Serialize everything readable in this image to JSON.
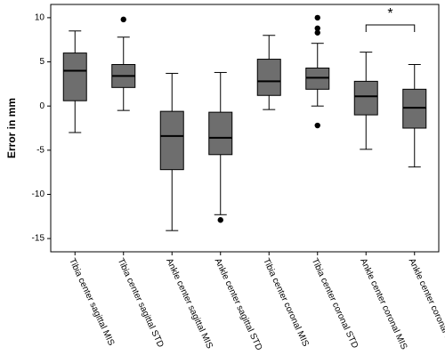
{
  "chart_data": {
    "type": "box",
    "ylabel": "Error in mm",
    "categories": [
      "Tibia center sagittal MIS",
      "Tibia center sagittal STD",
      "Ankle center sagittal MIS",
      "Ankle center sagittal STD",
      "Tibia center coronal MIS",
      "Tibia center coronal STD",
      "Ankle center coronal MIS",
      "Ankle center coronal STD"
    ],
    "boxes": [
      {
        "whislo": -3.0,
        "q1": 0.6,
        "med": 4.0,
        "q3": 6.0,
        "whishi": 8.5,
        "fliers": []
      },
      {
        "whislo": -0.5,
        "q1": 2.1,
        "med": 3.4,
        "q3": 4.7,
        "whishi": 7.8,
        "fliers": [
          9.8
        ]
      },
      {
        "whislo": -14.1,
        "q1": -7.2,
        "med": -3.4,
        "q3": -0.6,
        "whishi": 3.7,
        "fliers": []
      },
      {
        "whislo": -12.3,
        "q1": -5.5,
        "med": -3.6,
        "q3": -0.7,
        "whishi": 3.8,
        "fliers": [
          -12.9
        ]
      },
      {
        "whislo": -0.4,
        "q1": 1.2,
        "med": 2.8,
        "q3": 5.3,
        "whishi": 8.0,
        "fliers": []
      },
      {
        "whislo": 0.0,
        "q1": 1.9,
        "med": 3.2,
        "q3": 4.3,
        "whishi": 7.1,
        "fliers": [
          10.0,
          8.8,
          8.3,
          -2.2
        ]
      },
      {
        "whislo": -4.9,
        "q1": -1.0,
        "med": 1.1,
        "q3": 2.8,
        "whishi": 6.1,
        "fliers": []
      },
      {
        "whislo": -6.9,
        "q1": -2.5,
        "med": -0.2,
        "q3": 1.9,
        "whishi": 4.7,
        "fliers": []
      }
    ],
    "annotation": "*",
    "color": "#6e6e6e",
    "ylim": [
      -16.5,
      11.5
    ],
    "yticks": [
      -15,
      -10,
      -5,
      0,
      5,
      10
    ]
  }
}
